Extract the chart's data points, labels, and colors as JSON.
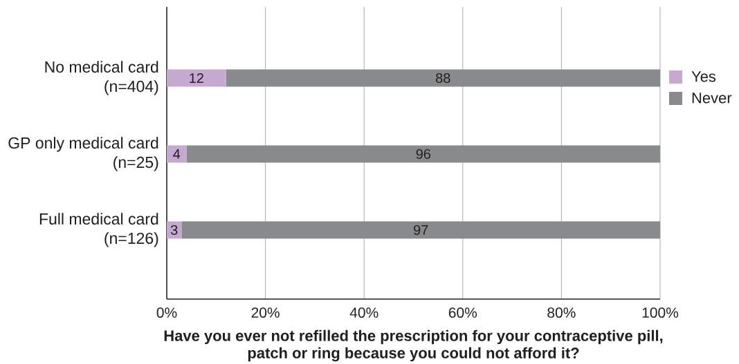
{
  "chart_data": {
    "type": "bar",
    "orientation": "horizontal",
    "stacked": true,
    "categories": [
      "No medical card (n=404)",
      "GP only medical card (n=25)",
      "Full medical card (n=126)"
    ],
    "series": [
      {
        "name": "Yes",
        "color": "#c5a9d0",
        "values": [
          12,
          4,
          3
        ]
      },
      {
        "name": "Never",
        "color": "#898a8d",
        "values": [
          88,
          96,
          97
        ]
      }
    ],
    "xlim": [
      0,
      100
    ],
    "xticks": [
      {
        "value": 0,
        "label": "0%"
      },
      {
        "value": 20,
        "label": "20%"
      },
      {
        "value": 40,
        "label": "40%"
      },
      {
        "value": 60,
        "label": "60%"
      },
      {
        "value": 80,
        "label": "80%"
      },
      {
        "value": 100,
        "label": "100%"
      }
    ],
    "xlabel": "Have you ever not refilled the prescription for your contraceptive pill, patch or ring because you could not afford it?",
    "grid": "x",
    "legend": "right",
    "data_labels": true
  }
}
